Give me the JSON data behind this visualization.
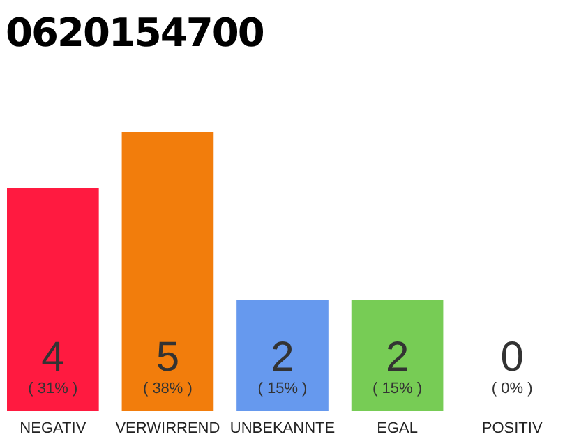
{
  "chart_data": {
    "type": "bar",
    "title": "0620154700",
    "categories": [
      "NEGATIV",
      "VERWIRREND",
      "UNBEKANNTE",
      "EGAL",
      "POSITIV"
    ],
    "values": [
      4,
      5,
      2,
      2,
      0
    ],
    "colors": [
      "#ff1a40",
      "#f27d0c",
      "#6699ee",
      "#77cc55",
      "#aaaaaa"
    ],
    "data_labels": true,
    "annotations": [
      "( 31% )",
      "( 38% )",
      "( 15% )",
      "( 15% )",
      "( 0% )"
    ]
  }
}
